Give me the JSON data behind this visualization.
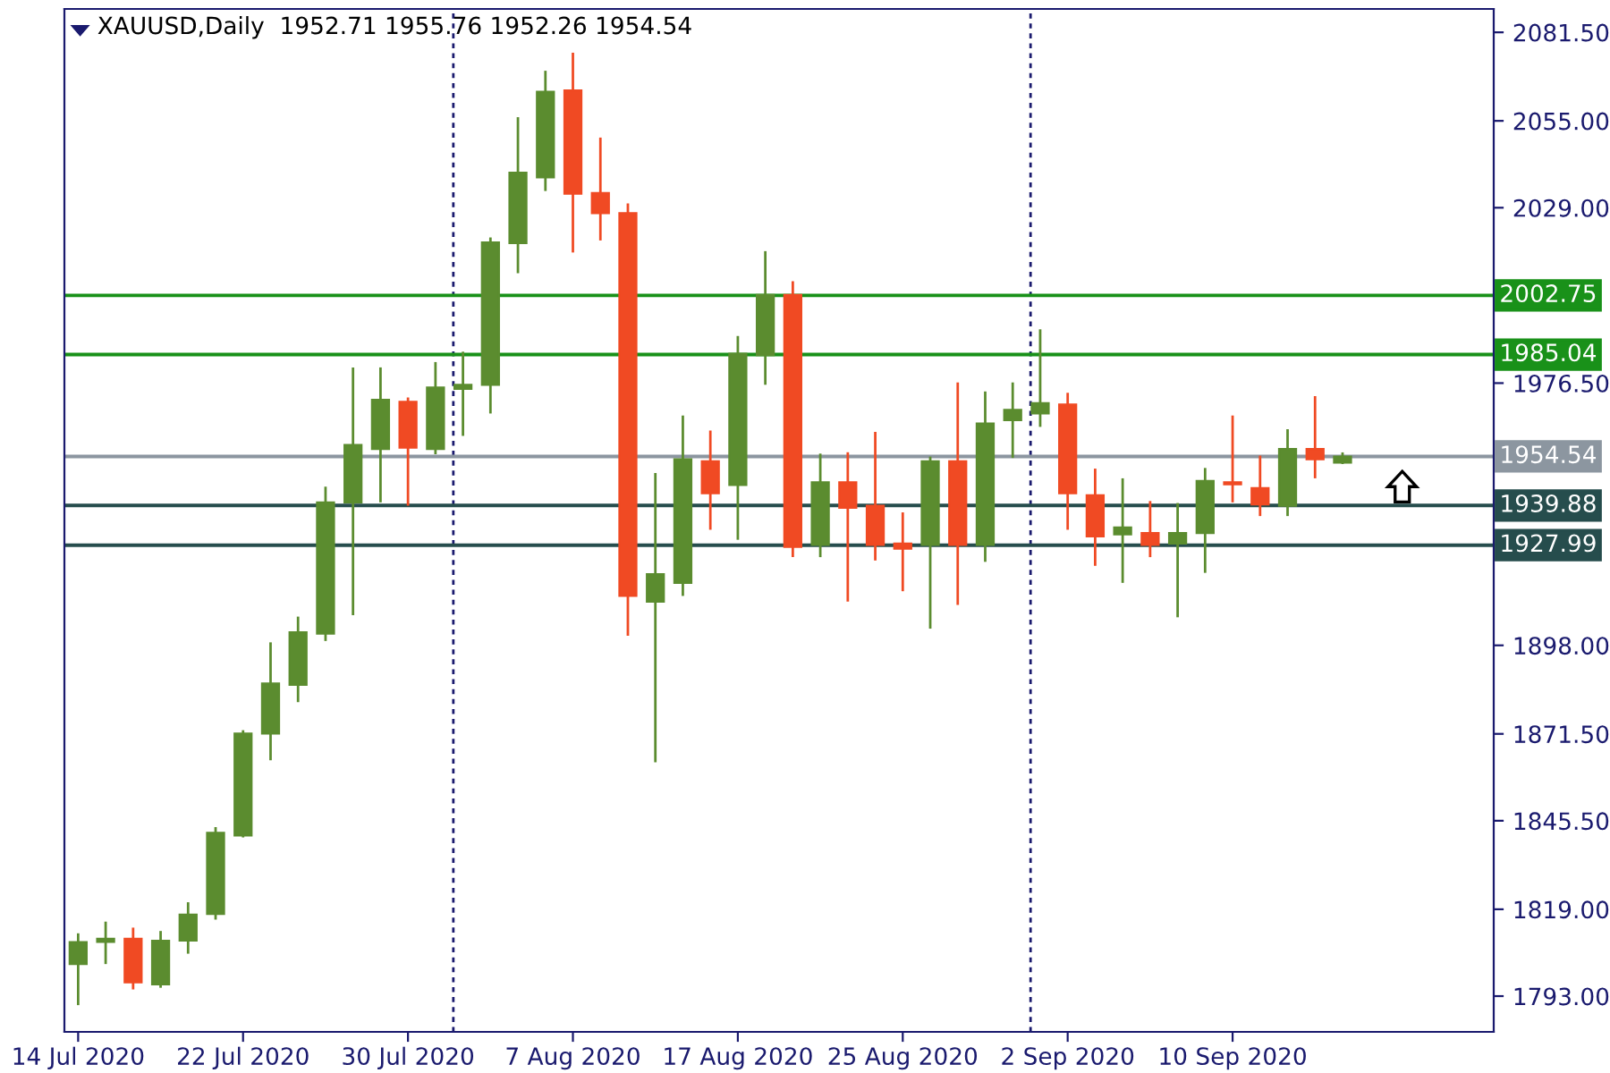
{
  "chart_data": {
    "type": "candlestick",
    "title": "XAUUSD,Daily  1952.71 1955.76 1952.26 1954.54",
    "categories": [
      "14 Jul 2020",
      null,
      null,
      null,
      null,
      null,
      "22 Jul 2020",
      null,
      null,
      null,
      null,
      null,
      "30 Jul 2020",
      null,
      null,
      null,
      null,
      null,
      "7 Aug 2020",
      null,
      null,
      null,
      null,
      null,
      "17 Aug 2020",
      null,
      null,
      null,
      null,
      null,
      "25 Aug 2020",
      null,
      null,
      null,
      null,
      null,
      "2 Sep 2020",
      null,
      null,
      null,
      null,
      null,
      "10 Sep 2020",
      null,
      null,
      null,
      null,
      null,
      null,
      null,
      null,
      null
    ],
    "ohlc": [
      [
        1802.6,
        1811.8,
        1790.3,
        1809.2
      ],
      [
        1809.2,
        1815.3,
        1802.6,
        1810.2
      ],
      [
        1810.2,
        1813.5,
        1795.0,
        1797.1
      ],
      [
        1796.5,
        1812.5,
        1795.5,
        1809.6
      ],
      [
        1809.6,
        1821.1,
        1805.7,
        1817.4
      ],
      [
        1817.6,
        1843.6,
        1815.9,
        1841.9
      ],
      [
        1841.1,
        1872.6,
        1840.5,
        1871.6
      ],
      [
        1871.6,
        1898.9,
        1863.6,
        1886.6
      ],
      [
        1886.2,
        1906.6,
        1881.0,
        1901.9
      ],
      [
        1901.5,
        1945.5,
        1899.3,
        1940.8
      ],
      [
        1940.8,
        1981.2,
        1907.0,
        1958.0
      ],
      [
        1956.8,
        1981.2,
        1940.8,
        1971.5
      ],
      [
        1970.9,
        1972.2,
        1939.8,
        1957.2
      ],
      [
        1956.8,
        1982.8,
        1955.2,
        1975.2
      ],
      [
        1974.8,
        1985.9,
        1960.7,
        1976.0
      ],
      [
        1976.0,
        2020.1,
        1967.4,
        2018.6
      ],
      [
        2018.4,
        2056.1,
        2009.4,
        2039.5
      ],
      [
        2038.1,
        2070.0,
        2034.0,
        2063.7
      ],
      [
        2064.1,
        2075.4,
        2015.6,
        2033.2
      ],
      [
        2033.4,
        2050.0,
        2019.2,
        2027.4
      ],
      [
        2027.4,
        2030.3,
        1900.9,
        1912.8
      ],
      [
        1911.1,
        1949.6,
        1863.0,
        1919.3
      ],
      [
        1916.7,
        1966.8,
        1912.8,
        1953.7
      ],
      [
        1953.1,
        1962.3,
        1932.6,
        1943.5
      ],
      [
        1946.0,
        1990.6,
        1929.6,
        1985.3
      ],
      [
        1984.9,
        2016.0,
        1976.0,
        2002.9
      ],
      [
        2002.9,
        2007.0,
        1924.4,
        1927.5
      ],
      [
        1928.1,
        1955.4,
        1924.4,
        1946.8
      ],
      [
        1946.8,
        1955.8,
        1911.1,
        1939.2
      ],
      [
        1939.8,
        1961.9,
        1923.4,
        1928.1
      ],
      [
        1928.5,
        1937.8,
        1914.2,
        1926.9
      ],
      [
        1928.1,
        1954.5,
        1903.0,
        1953.1
      ],
      [
        1953.1,
        1976.7,
        1910.1,
        1928.1
      ],
      [
        1928.1,
        1974.0,
        1923.0,
        1964.4
      ],
      [
        1965.4,
        1976.7,
        1954.1,
        1968.5
      ],
      [
        1967.4,
        1992.6,
        1963.4,
        1970.5
      ],
      [
        1970.1,
        1973.6,
        1932.6,
        1943.5
      ],
      [
        1942.9,
        1950.9,
        1921.8,
        1930.6
      ],
      [
        1931.2,
        1948.0,
        1916.7,
        1933.3
      ],
      [
        1931.6,
        1941.2,
        1924.4,
        1928.1
      ],
      [
        1928.5,
        1940.6,
        1906.4,
        1931.6
      ],
      [
        1931.6,
        1951.1,
        1919.7,
        1947.2
      ],
      [
        1946.8,
        1966.8,
        1940.8,
        1946.2
      ],
      [
        1945.1,
        1954.8,
        1936.7,
        1940.2
      ],
      [
        1939.8,
        1962.7,
        1936.7,
        1956.8
      ],
      [
        1956.8,
        1972.6,
        1948.0,
        1953.7
      ],
      [
        1952.71,
        1955.76,
        1952.26,
        1954.54
      ],
      null,
      null,
      null,
      null,
      null
    ],
    "colors": [
      "#5b8c2f",
      "#5b8c2f",
      "#f04a23",
      "#5b8c2f",
      "#5b8c2f",
      "#5b8c2f",
      "#5b8c2f",
      "#5b8c2f",
      "#5b8c2f",
      "#5b8c2f",
      "#5b8c2f",
      "#5b8c2f",
      "#f04a23",
      "#5b8c2f",
      "#5b8c2f",
      "#5b8c2f",
      "#5b8c2f",
      "#5b8c2f",
      "#f04a23",
      "#f04a23",
      "#f04a23",
      "#5b8c2f",
      "#5b8c2f",
      "#f04a23",
      "#5b8c2f",
      "#5b8c2f",
      "#f04a23",
      "#5b8c2f",
      "#f04a23",
      "#f04a23",
      "#f04a23",
      "#5b8c2f",
      "#f04a23",
      "#5b8c2f",
      "#5b8c2f",
      "#5b8c2f",
      "#f04a23",
      "#f04a23",
      "#5b8c2f",
      "#f04a23",
      "#5b8c2f",
      "#5b8c2f",
      "#f04a23",
      "#f04a23",
      "#5b8c2f",
      "#f04a23",
      "#5b8c2f",
      null,
      null,
      null,
      null,
      null
    ],
    "ylim": [
      1782.3,
      2088.5
    ],
    "yticks": [
      {
        "value": 1793,
        "label": "1793.00"
      },
      {
        "value": 1819,
        "label": "1819.00"
      },
      {
        "value": 1845.5,
        "label": "1845.50"
      },
      {
        "value": 1871.5,
        "label": "1871.50"
      },
      {
        "value": 1898,
        "label": "1898.00"
      },
      {
        "value": 1976.5,
        "label": "1976.50"
      },
      {
        "value": 2029,
        "label": "2029.00"
      },
      {
        "value": 2055,
        "label": "2055.00"
      },
      {
        "value": 2081.5,
        "label": "2081.50"
      }
    ],
    "ref_lines": [
      {
        "axis": "y",
        "value": 2002.75,
        "label": "2002.75",
        "color": "#199119",
        "line_style": "solid"
      },
      {
        "axis": "y",
        "value": 1985.04,
        "label": "1985.04",
        "color": "#199119",
        "line_style": "solid"
      },
      {
        "axis": "y",
        "value": 1954.54,
        "label": "1954.54",
        "color": "#8c96a0",
        "line_style": "solid"
      },
      {
        "axis": "y",
        "value": 1939.88,
        "label": "1939.88",
        "color": "#264d4d",
        "line_style": "solid"
      },
      {
        "axis": "y",
        "value": 1927.99,
        "label": "1927.99",
        "color": "#264d4d",
        "line_style": "solid"
      }
    ],
    "grid": false,
    "legend": false
  }
}
